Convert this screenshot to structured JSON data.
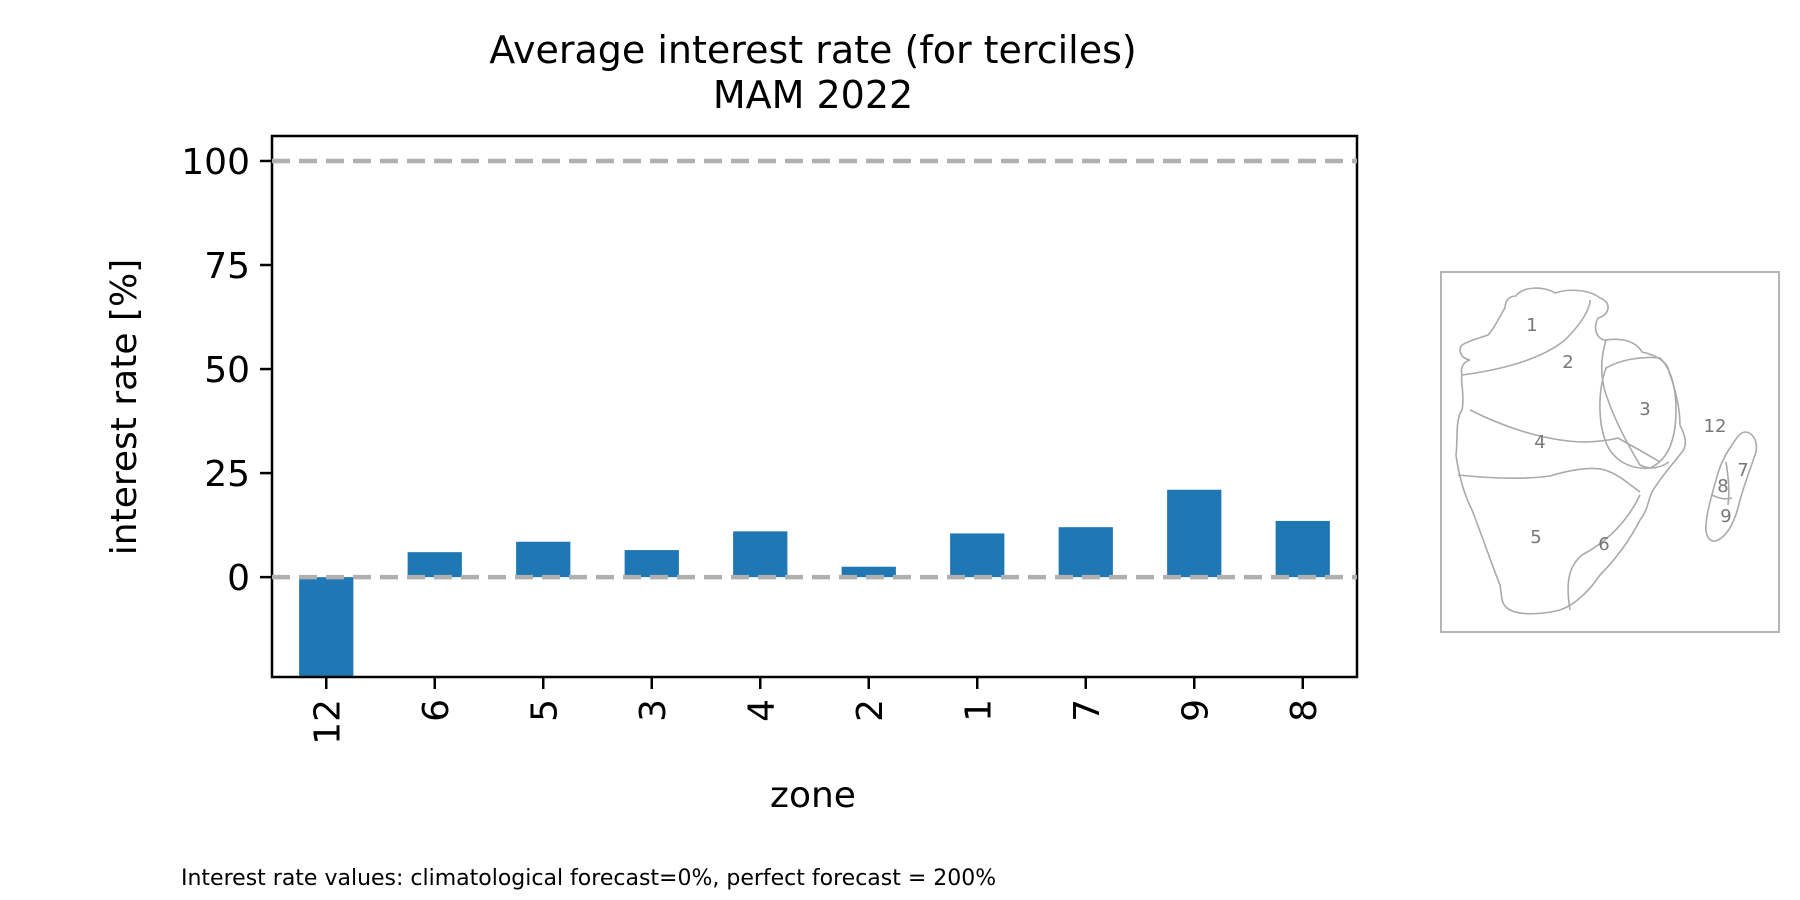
{
  "chart_data": {
    "type": "bar",
    "title_line1": "Average interest rate (for terciles)",
    "title_line2": "MAM 2022",
    "xlabel": "zone",
    "ylabel": "interest rate [%]",
    "categories": [
      "12",
      "6",
      "5",
      "3",
      "4",
      "2",
      "1",
      "7",
      "9",
      "8"
    ],
    "values": [
      -24,
      6,
      8.5,
      6.5,
      11,
      2.5,
      10.5,
      12,
      21,
      13.5
    ],
    "ylim": [
      -24,
      106
    ],
    "yticks": [
      0,
      25,
      50,
      75,
      100
    ],
    "ytick_labels": [
      "0",
      "25",
      "50",
      "75",
      "100"
    ],
    "reference_lines": [
      0,
      100
    ],
    "bar_color": "#1f77b4",
    "reference_line_color": "#b0b0b0",
    "grid": false,
    "legend": "none"
  },
  "footnote": "Interest rate values: climatological forecast=0%, perfect forecast = 200%",
  "inset_map": {
    "zone_labels": [
      "1",
      "2",
      "3",
      "4",
      "5",
      "6",
      "7",
      "8",
      "9",
      "12"
    ],
    "outline_color": "#aaaaaa"
  }
}
